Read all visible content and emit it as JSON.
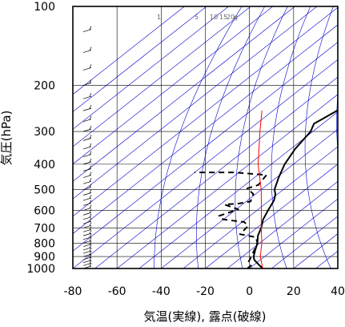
{
  "chart_data": {
    "type": "line",
    "title": "",
    "xlabel": "気温(実線), 露点(破線)",
    "ylabel": "気圧(hPa)",
    "xlim": [
      -80,
      40
    ],
    "ylim": [
      1000,
      100
    ],
    "y_scale": "log",
    "x_ticks": [
      "-80",
      "-60",
      "-40",
      "-20",
      "0",
      "20",
      "40"
    ],
    "y_ticks": [
      "100",
      "200",
      "300",
      "400",
      "500",
      "600",
      "700",
      "800",
      "900",
      "1000"
    ],
    "mixing_ratio_labels": [
      "1",
      "5",
      "10",
      "15",
      "20",
      "g"
    ],
    "grid": true,
    "series": [
      {
        "role": "temperature",
        "style": "solid",
        "color": "#000000",
        "points": [
          {
            "t": 6,
            "p": 1000
          },
          {
            "t": 3,
            "p": 975
          },
          {
            "t": 0,
            "p": 950
          },
          {
            "t": -3,
            "p": 925
          },
          {
            "t": -5,
            "p": 900
          },
          {
            "t": -8,
            "p": 850
          },
          {
            "t": -11,
            "p": 800
          },
          {
            "t": -15,
            "p": 750
          },
          {
            "t": -18,
            "p": 700
          },
          {
            "t": -22,
            "p": 650
          },
          {
            "t": -25,
            "p": 600
          },
          {
            "t": -28,
            "p": 550
          },
          {
            "t": -31,
            "p": 520
          },
          {
            "t": -34,
            "p": 500
          },
          {
            "t": -39,
            "p": 450
          },
          {
            "t": -44,
            "p": 400
          },
          {
            "t": -48,
            "p": 350
          },
          {
            "t": -51,
            "p": 300
          },
          {
            "t": -54,
            "p": 280
          },
          {
            "t": -53,
            "p": 270
          },
          {
            "t": -51,
            "p": 250
          },
          {
            "t": -49,
            "p": 220
          },
          {
            "t": -49,
            "p": 200
          },
          {
            "t": -48,
            "p": 180
          },
          {
            "t": -49,
            "p": 160
          },
          {
            "t": -50,
            "p": 140
          },
          {
            "t": -51,
            "p": 120
          },
          {
            "t": -51,
            "p": 105
          },
          {
            "t": -50,
            "p": 100
          }
        ]
      },
      {
        "role": "dewpoint",
        "style": "dashed",
        "color": "#000000",
        "points": [
          {
            "t": -1,
            "p": 1000
          },
          {
            "t": -1,
            "p": 975
          },
          {
            "t": -4,
            "p": 950
          },
          {
            "t": -6,
            "p": 900
          },
          {
            "t": -11,
            "p": 800
          },
          {
            "t": -15,
            "p": 760
          },
          {
            "t": -24,
            "p": 740
          },
          {
            "t": -25,
            "p": 690
          },
          {
            "t": -29,
            "p": 665
          },
          {
            "t": -40,
            "p": 650
          },
          {
            "t": -44,
            "p": 630
          },
          {
            "t": -39,
            "p": 595
          },
          {
            "t": -48,
            "p": 570
          },
          {
            "t": -42,
            "p": 565
          },
          {
            "t": -38,
            "p": 555
          },
          {
            "t": -41,
            "p": 520
          },
          {
            "t": -47,
            "p": 495
          },
          {
            "t": -44,
            "p": 480
          },
          {
            "t": -46,
            "p": 440
          },
          {
            "t": -62,
            "p": 430
          },
          {
            "t": -80,
            "p": 430
          }
        ]
      },
      {
        "role": "parcel",
        "style": "solid",
        "color": "#ff0000",
        "points": [
          {
            "t": 6,
            "p": 1000
          },
          {
            "t": -2,
            "p": 900
          },
          {
            "t": -9,
            "p": 800
          },
          {
            "t": -18,
            "p": 700
          },
          {
            "t": -28,
            "p": 600
          },
          {
            "t": -40,
            "p": 500
          },
          {
            "t": -56,
            "p": 400
          },
          {
            "t": -74,
            "p": 300
          },
          {
            "t": -85,
            "p": 250
          }
        ]
      }
    ],
    "colors": {
      "isotherm_grid": "#0000cc",
      "isobar_grid": "#000000",
      "frame": "#000000",
      "barbs": "#000000"
    }
  }
}
